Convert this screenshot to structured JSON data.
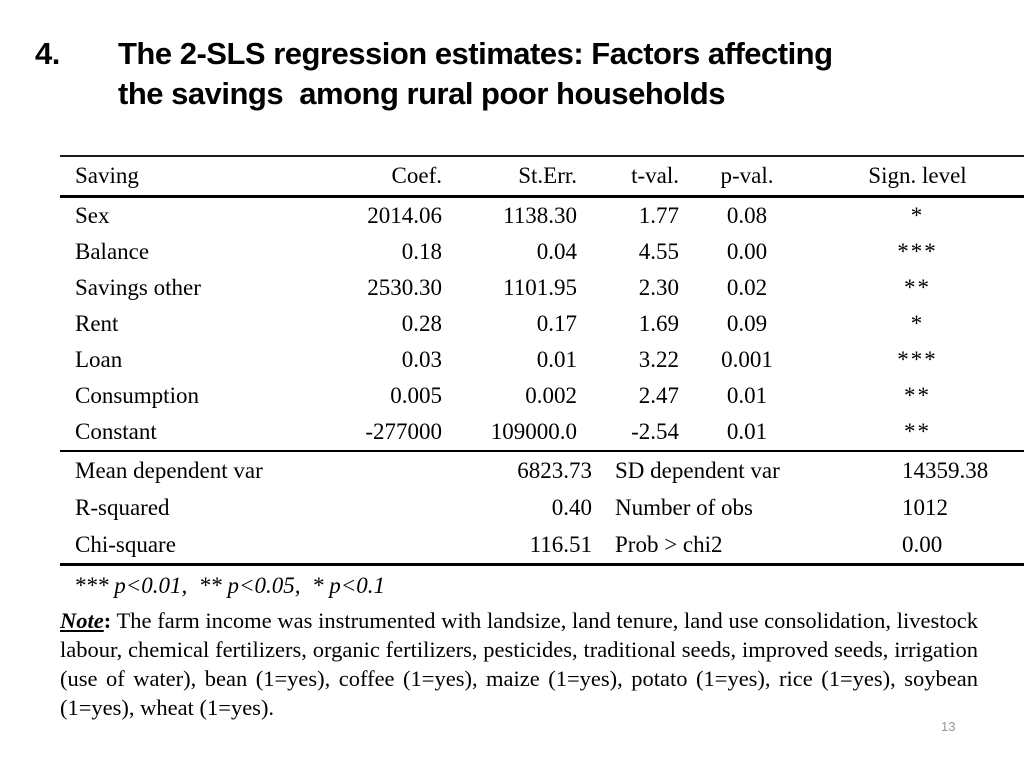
{
  "title": {
    "number": "4.",
    "line1": "The 2-SLS regression estimates: Factors affecting",
    "line2": "the savings  among rural poor households"
  },
  "table": {
    "headers": [
      "Saving",
      "Coef.",
      "St.Err.",
      "t-val.",
      "p-val.",
      "Sign. level"
    ],
    "rows": [
      [
        "Sex",
        "2014.06",
        "1138.30",
        "1.77",
        "0.08",
        "*"
      ],
      [
        "Balance",
        "0.18",
        "0.04",
        "4.55",
        "0.00",
        "***"
      ],
      [
        "Savings other",
        "2530.30",
        "1101.95",
        "2.30",
        "0.02",
        "**"
      ],
      [
        "Rent",
        "0.28",
        "0.17",
        "1.69",
        "0.09",
        "*"
      ],
      [
        "Loan",
        "0.03",
        "0.01",
        "3.22",
        "0.001",
        "***"
      ],
      [
        "Consumption",
        "0.005",
        "0.002",
        "2.47",
        "0.01",
        "**"
      ],
      [
        "Constant",
        "-277000",
        "109000.0",
        "-2.54",
        "0.01",
        "**"
      ]
    ],
    "summary": [
      [
        "Mean dependent var",
        "6823.73",
        "SD dependent var",
        "14359.38"
      ],
      [
        "R-squared",
        "0.40",
        "Number of obs",
        "1012"
      ],
      [
        "Chi-square",
        "116.51",
        "Prob > chi2",
        "0.00"
      ]
    ],
    "significance_note": "*** p<0.01,  ** p<0.05,  * p<0.1"
  },
  "note": {
    "label": "Note",
    "colon": ":",
    "text": " The farm income was instrumented with landsize, land tenure, land use consolidation, livestock labour, chemical fertilizers, organic fertilizers, pesticides, traditional seeds, improved seeds, irrigation (use of water), bean (1=yes), coffee (1=yes), maize (1=yes), potato (1=yes), rice (1=yes), soybean (1=yes), wheat (1=yes)."
  },
  "footer": {
    "page_number": "13"
  }
}
